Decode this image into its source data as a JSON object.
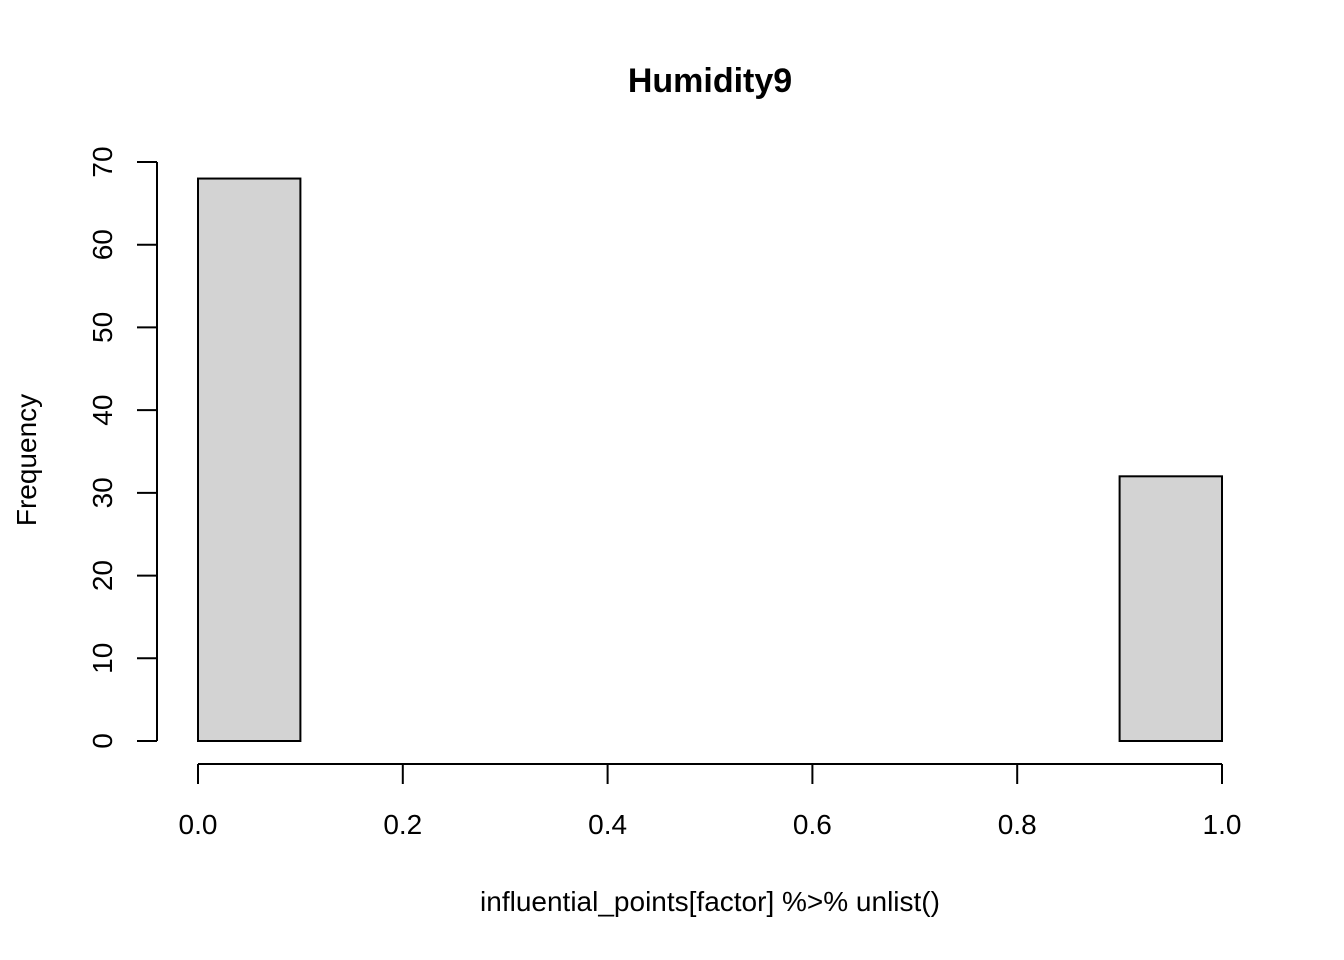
{
  "chart_data": {
    "type": "bar",
    "title": "Humidity9",
    "xlabel": "influential_points[factor] %>% unlist()",
    "ylabel": "Frequency",
    "bins": [
      {
        "start": 0.0,
        "end": 0.1,
        "count": 68
      },
      {
        "start": 0.1,
        "end": 0.2,
        "count": 0
      },
      {
        "start": 0.2,
        "end": 0.3,
        "count": 0
      },
      {
        "start": 0.3,
        "end": 0.4,
        "count": 0
      },
      {
        "start": 0.4,
        "end": 0.5,
        "count": 0
      },
      {
        "start": 0.5,
        "end": 0.6,
        "count": 0
      },
      {
        "start": 0.6,
        "end": 0.7,
        "count": 0
      },
      {
        "start": 0.7,
        "end": 0.8,
        "count": 0
      },
      {
        "start": 0.8,
        "end": 0.9,
        "count": 0
      },
      {
        "start": 0.9,
        "end": 1.0,
        "count": 32
      }
    ],
    "xlim": [
      0.0,
      1.0
    ],
    "ylim": [
      0,
      70
    ],
    "x_ticks": [
      "0.0",
      "0.2",
      "0.4",
      "0.6",
      "0.8",
      "1.0"
    ],
    "y_ticks": [
      "0",
      "10",
      "20",
      "30",
      "40",
      "50",
      "60",
      "70"
    ],
    "bar_color": "#d3d3d3",
    "grid": false,
    "legend": "none"
  }
}
